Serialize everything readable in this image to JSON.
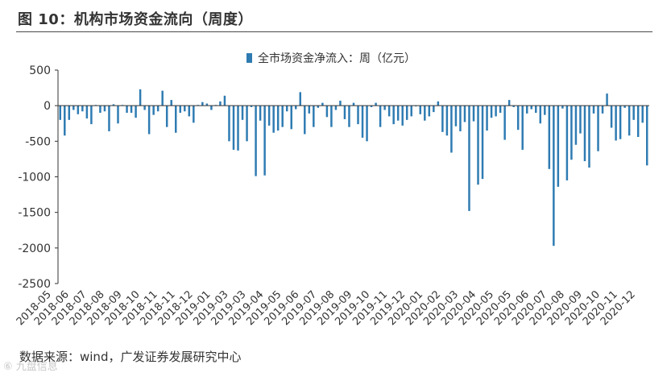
{
  "title": "图 10：机构市场资金流向（周度）",
  "source": "数据来源：wind，广发证券发展研究中心",
  "watermark": "⑥ 九盘信息",
  "colors": {
    "bar": "#2e7bb2",
    "axis": "#333333",
    "text": "#333333",
    "rule": "#4a4a4a"
  },
  "chart_data": {
    "type": "bar",
    "series": [
      {
        "name": "全市场资金净流入：周（亿元）",
        "values": [
          -200,
          -420,
          -200,
          -60,
          -120,
          -80,
          -180,
          -260,
          10,
          -100,
          -80,
          -360,
          20,
          -250,
          10,
          -100,
          -100,
          -170,
          230,
          -60,
          -400,
          -130,
          -80,
          210,
          -300,
          80,
          -380,
          -100,
          -80,
          -150,
          -240,
          10,
          50,
          30,
          -60,
          10,
          60,
          140,
          -500,
          -620,
          -630,
          -200,
          -500,
          -20,
          -990,
          -210,
          -980,
          -280,
          -380,
          -350,
          -300,
          -80,
          -330,
          -50,
          190,
          -400,
          -110,
          -300,
          -30,
          40,
          -160,
          -300,
          -60,
          70,
          -190,
          -300,
          40,
          -260,
          -450,
          -500,
          -20,
          40,
          -300,
          -60,
          -150,
          -260,
          -210,
          -280,
          -200,
          -150,
          -10,
          -120,
          -210,
          -150,
          -90,
          60,
          -370,
          -420,
          -660,
          -290,
          -360,
          -230,
          -1480,
          -220,
          -1110,
          -1030,
          -350,
          -170,
          -150,
          -100,
          -480,
          80,
          -20,
          -340,
          -620,
          -110,
          -50,
          -100,
          -250,
          -130,
          -890,
          -1970,
          -1140,
          -40,
          -1050,
          -760,
          -550,
          -390,
          -780,
          -870,
          -110,
          -640,
          -110,
          170,
          -310,
          -490,
          -470,
          -30,
          -420,
          -200,
          -440,
          -240,
          -840
        ]
      }
    ],
    "x_tick_labels": [
      "2018-05",
      "2018-06",
      "2018-07",
      "2018-08",
      "2018-09",
      "2018-10",
      "2018-11",
      "2018-11",
      "2018-12",
      "2019-01",
      "2019-03",
      "2019-03",
      "2019-04",
      "2019-05",
      "2019-06",
      "2019-07",
      "2019-08",
      "2019-09",
      "2019-10",
      "2019-11",
      "2019-12",
      "2020-01",
      "2020-02",
      "2020-03",
      "2020-04",
      "2020-05",
      "2020-05",
      "2020-06",
      "2020-07",
      "2020-08",
      "2020-09",
      "2020-10",
      "2020-11",
      "2020-12"
    ],
    "yticks": [
      500,
      0,
      -500,
      -1000,
      -1500,
      -2000,
      -2500
    ],
    "ylim": [
      -2500,
      500
    ],
    "grid": false,
    "legend_position": "top-center"
  }
}
